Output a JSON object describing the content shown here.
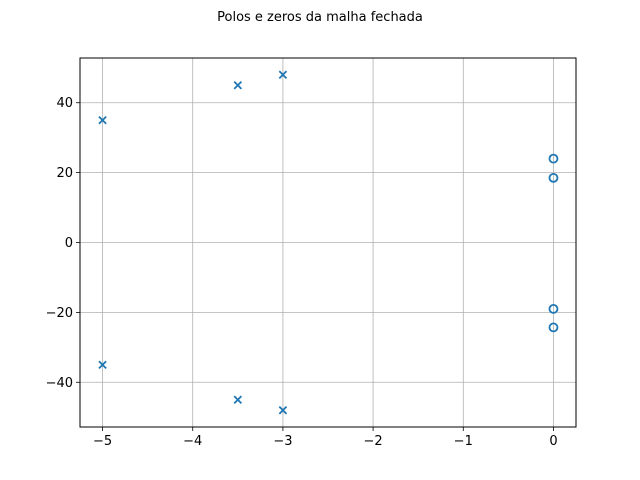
{
  "chart_data": {
    "type": "scatter",
    "title": "Polos e zeros da malha fechada",
    "xlabel": "",
    "ylabel": "",
    "xlim": [
      -5.25,
      0.25
    ],
    "ylim": [
      -52.8,
      52.8
    ],
    "xticks": [
      -5,
      -4,
      -3,
      -2,
      -1,
      0
    ],
    "yticks": [
      -40,
      -20,
      0,
      20,
      40
    ],
    "xtick_labels": [
      "−5",
      "−4",
      "−3",
      "−2",
      "−1",
      "0"
    ],
    "ytick_labels": [
      "−40",
      "−20",
      "0",
      "20",
      "40"
    ],
    "grid": true,
    "color": "#1f77b4",
    "series": [
      {
        "marker": "x",
        "points": [
          {
            "x": -5,
            "y": 35
          },
          {
            "x": -5,
            "y": -35
          },
          {
            "x": -3.5,
            "y": 45
          },
          {
            "x": -3.5,
            "y": -45
          },
          {
            "x": -3,
            "y": 48
          },
          {
            "x": -3,
            "y": -48
          }
        ]
      },
      {
        "marker": "o",
        "points": [
          {
            "x": 0,
            "y": 24
          },
          {
            "x": 0,
            "y": 18.5
          },
          {
            "x": 0,
            "y": -19
          },
          {
            "x": 0,
            "y": -24.3
          }
        ]
      }
    ]
  }
}
